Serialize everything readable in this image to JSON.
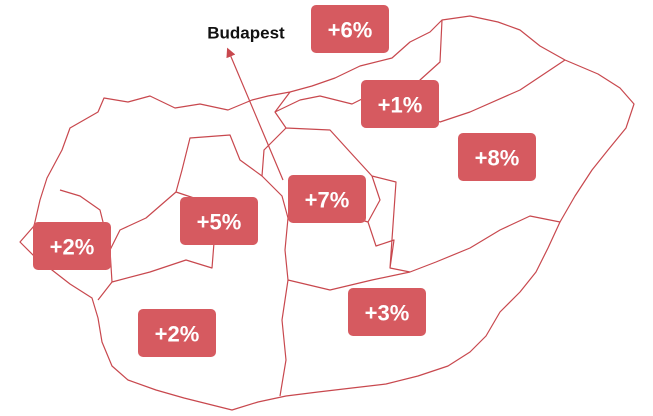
{
  "map": {
    "callout": "Budapest",
    "regions": [
      {
        "label": "+6%"
      },
      {
        "label": "+1%"
      },
      {
        "label": "+8%"
      },
      {
        "label": "+7%"
      },
      {
        "label": "+5%"
      },
      {
        "label": "+2%"
      },
      {
        "label": "+3%"
      },
      {
        "label": "+2%"
      }
    ]
  }
}
